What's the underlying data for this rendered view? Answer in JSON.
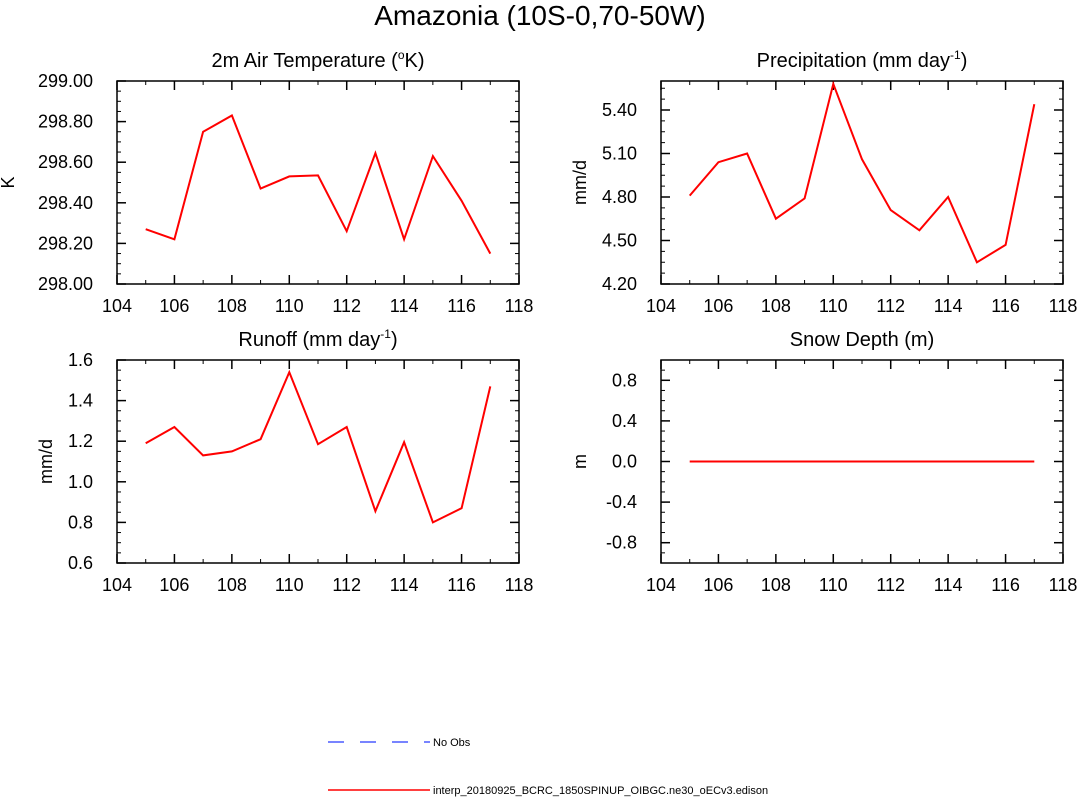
{
  "title": "Amazonia (10S-0,70-50W)",
  "colors": {
    "series": "#ff0000",
    "obs": "#4c5cff",
    "axis": "#000000"
  },
  "chart_data": [
    {
      "type": "line",
      "title_main": "2m Air Temperature (",
      "title_sup": "o",
      "title_tail": "K)",
      "ylabel": "K",
      "xlim": [
        104,
        118
      ],
      "ylim": [
        298.0,
        299.0
      ],
      "xticks": [
        104,
        106,
        108,
        110,
        112,
        114,
        116,
        118
      ],
      "yticks": [
        "298.00",
        "298.20",
        "298.40",
        "298.60",
        "298.80",
        "299.00"
      ],
      "x": [
        105,
        106,
        107,
        108,
        109,
        110,
        111,
        112,
        113,
        114,
        115,
        116,
        117
      ],
      "series": [
        {
          "name": "interp_20180925_BCRC_1850SPINUP_OIBGC.ne30_oECv3.edison",
          "values": [
            298.27,
            298.22,
            298.75,
            298.83,
            298.47,
            298.53,
            298.535,
            298.26,
            298.645,
            298.22,
            298.63,
            298.41,
            298.15
          ]
        }
      ]
    },
    {
      "type": "line",
      "title_main": "Precipitation (mm day",
      "title_sup": "-1",
      "title_tail": ")",
      "ylabel": "mm/d",
      "xlim": [
        104,
        118
      ],
      "ylim": [
        4.2,
        5.6
      ],
      "xticks": [
        104,
        106,
        108,
        110,
        112,
        114,
        116,
        118
      ],
      "yticks": [
        "4.20",
        "4.50",
        "4.80",
        "5.10",
        "5.40"
      ],
      "x": [
        105,
        106,
        107,
        108,
        109,
        110,
        111,
        112,
        113,
        114,
        115,
        116,
        117
      ],
      "series": [
        {
          "name": "interp_20180925_BCRC_1850SPINUP_OIBGC.ne30_oECv3.edison",
          "values": [
            4.81,
            5.04,
            5.1,
            4.65,
            4.79,
            5.58,
            5.06,
            4.71,
            4.57,
            4.8,
            4.35,
            4.47,
            5.44
          ]
        }
      ]
    },
    {
      "type": "line",
      "title_main": "Runoff (mm day",
      "title_sup": "-1",
      "title_tail": ")",
      "ylabel": "mm/d",
      "xlim": [
        104,
        118
      ],
      "ylim": [
        0.6,
        1.6
      ],
      "xticks": [
        104,
        106,
        108,
        110,
        112,
        114,
        116,
        118
      ],
      "yticks": [
        "0.6",
        "0.8",
        "1.0",
        "1.2",
        "1.4",
        "1.6"
      ],
      "x": [
        105,
        106,
        107,
        108,
        109,
        110,
        111,
        112,
        113,
        114,
        115,
        116,
        117
      ],
      "series": [
        {
          "name": "interp_20180925_BCRC_1850SPINUP_OIBGC.ne30_oECv3.edison",
          "values": [
            1.19,
            1.27,
            1.13,
            1.15,
            1.21,
            1.54,
            1.185,
            1.27,
            0.855,
            1.195,
            0.8,
            0.87,
            1.47
          ]
        }
      ]
    },
    {
      "type": "line",
      "title_main": "Snow Depth (m)",
      "title_sup": "",
      "title_tail": "",
      "ylabel": "m",
      "xlim": [
        104,
        118
      ],
      "ylim": [
        -1.0,
        1.0
      ],
      "xticks": [
        104,
        106,
        108,
        110,
        112,
        114,
        116,
        118
      ],
      "yticks": [
        "-0.8",
        "-0.4",
        "0.0",
        "0.4",
        "0.8"
      ],
      "x": [
        105,
        106,
        107,
        108,
        109,
        110,
        111,
        112,
        113,
        114,
        115,
        116,
        117
      ],
      "series": [
        {
          "name": "interp_20180925_BCRC_1850SPINUP_OIBGC.ne30_oECv3.edison",
          "values": [
            0,
            0,
            0,
            0,
            0,
            0,
            0,
            0,
            0,
            0,
            0,
            0,
            0
          ]
        }
      ]
    }
  ],
  "legend": {
    "obs_label": "No Obs",
    "model_label": "interp_20180925_BCRC_1850SPINUP_OIBGC.ne30_oECv3.edison"
  }
}
